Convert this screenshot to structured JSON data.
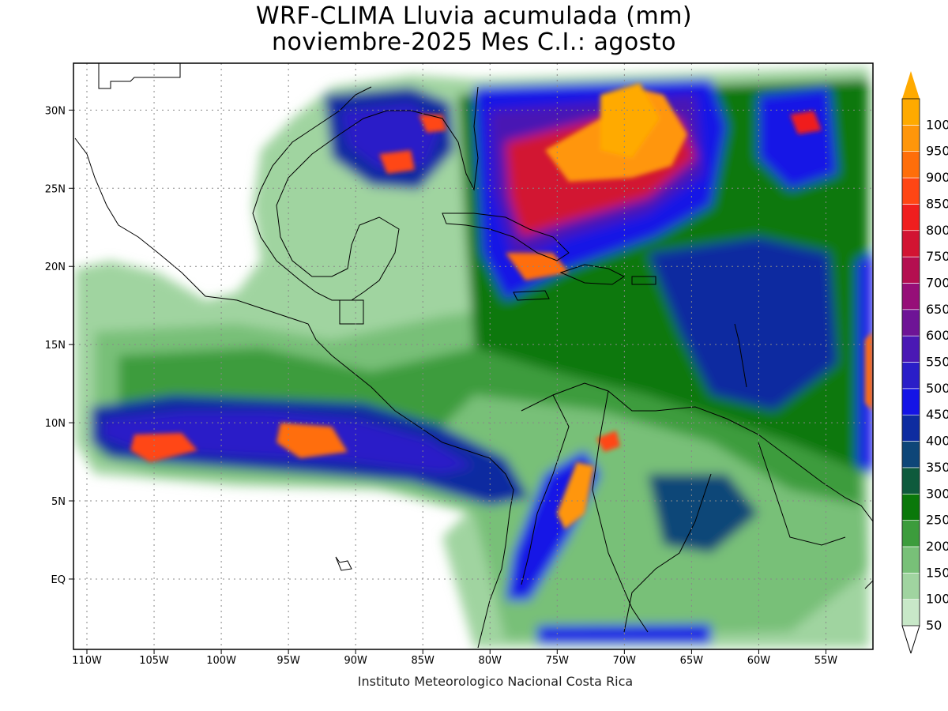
{
  "title": {
    "line1": "WRF-CLIMA Lluvia acumulada (mm)",
    "line2": "noviembre-2025 Mes C.I.: agosto"
  },
  "credit": "Instituto Meteorologico Nacional Costa Rica",
  "map": {
    "lon_labels": [
      "110W",
      "105W",
      "100W",
      "95W",
      "90W",
      "85W",
      "80W",
      "75W",
      "70W",
      "65W",
      "60W",
      "55W"
    ],
    "lat_labels": [
      "30N",
      "25N",
      "20N",
      "15N",
      "10N",
      "5N",
      "EQ"
    ],
    "lon_values": [
      -110,
      -105,
      -100,
      -95,
      -90,
      -85,
      -80,
      -75,
      -70,
      -65,
      -60,
      -55
    ],
    "lat_values": [
      30,
      25,
      20,
      15,
      10,
      5,
      0
    ],
    "lon_range": [
      -111,
      -51.5
    ],
    "lat_range": [
      -4.5,
      33
    ]
  },
  "legend": {
    "labels": [
      "50",
      "100",
      "150",
      "200",
      "250",
      "300",
      "350",
      "400",
      "450",
      "500",
      "550",
      "600",
      "650",
      "700",
      "750",
      "800",
      "850",
      "900",
      "950",
      "1000"
    ],
    "colors": [
      "#c8e8c8",
      "#a0d4a0",
      "#78c078",
      "#3c9c3c",
      "#0a780a",
      "#0e5a3c",
      "#0e4678",
      "#0e2ca0",
      "#1414e6",
      "#2a1ec8",
      "#4a18b4",
      "#6e1496",
      "#960f78",
      "#b40f50",
      "#d21432",
      "#f01e1e",
      "#ff4614",
      "#ff6e0a",
      "#ff960a",
      "#ffaa00"
    ]
  },
  "chart_data": {
    "type": "heatmap",
    "title": "WRF-CLIMA Lluvia acumulada (mm) noviembre-2025 Mes C.I.: agosto",
    "variable": "Lluvia acumulada (mm)",
    "x_ticks": [
      "110W",
      "105W",
      "100W",
      "95W",
      "90W",
      "85W",
      "80W",
      "75W",
      "70W",
      "65W",
      "60W",
      "55W"
    ],
    "y_ticks": [
      "30N",
      "25N",
      "20N",
      "15N",
      "10N",
      "5N",
      "EQ"
    ],
    "color_levels": [
      50,
      100,
      150,
      200,
      250,
      300,
      350,
      400,
      450,
      500,
      550,
      600,
      650,
      700,
      750,
      800,
      850,
      900,
      950,
      1000
    ],
    "grid": true,
    "legend_position": "right"
  }
}
